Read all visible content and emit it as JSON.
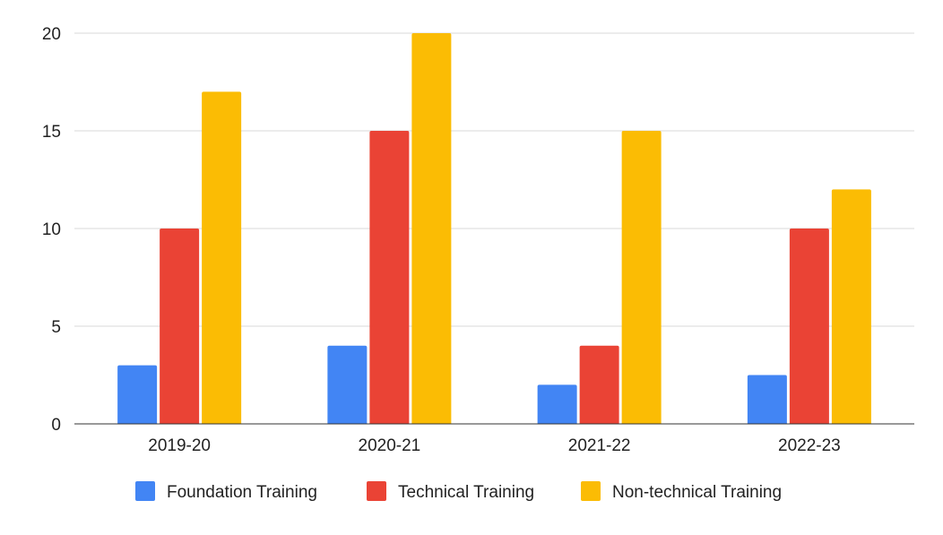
{
  "chart_data": {
    "type": "bar",
    "title": "",
    "xlabel": "",
    "ylabel": "",
    "categories": [
      "2019-20",
      "2020-21",
      "2021-22",
      "2022-23"
    ],
    "series": [
      {
        "name": "Foundation Training",
        "color": "#4285f4",
        "values": [
          3,
          4,
          2,
          2.5
        ]
      },
      {
        "name": "Technical Training",
        "color": "#ea4335",
        "values": [
          10,
          15,
          4,
          10
        ]
      },
      {
        "name": "Non-technical Training",
        "color": "#fbbc04",
        "values": [
          17,
          20,
          15,
          12
        ]
      }
    ],
    "ylim": [
      0,
      20
    ],
    "yticks": [
      0,
      5,
      10,
      15,
      20
    ],
    "grid": true,
    "legend_position": "bottom"
  }
}
